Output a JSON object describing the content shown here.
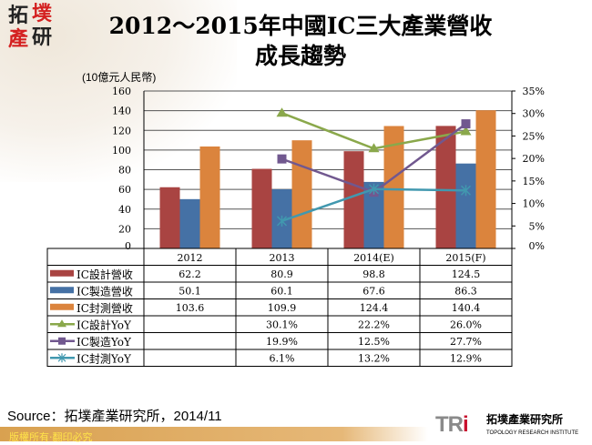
{
  "logo": {
    "chars": [
      "拓",
      "墣",
      "產",
      "研"
    ]
  },
  "title": {
    "line1": "2012～2015年中國IC三大產業營收",
    "line2": "成長趨勢"
  },
  "unit_label": "(10億元人民幣)",
  "chart_data": {
    "type": "bar",
    "categories": [
      "2012",
      "2013",
      "2014(E)",
      "2015(F)"
    ],
    "y_left": {
      "min": 0,
      "max": 160,
      "step": 20,
      "ticks": [
        "0",
        "20",
        "40",
        "60",
        "80",
        "100",
        "120",
        "140",
        "160"
      ]
    },
    "y_right": {
      "min": 0,
      "max": 35,
      "step": 5,
      "ticks": [
        "0%",
        "5%",
        "10%",
        "15%",
        "20%",
        "25%",
        "30%",
        "35%"
      ]
    },
    "grid": true,
    "legend": "table-below",
    "bar_series": [
      {
        "name": "IC設計營收",
        "color": "#a94442",
        "values": [
          62.2,
          80.9,
          98.8,
          124.5
        ],
        "labels": [
          "62.2",
          "80.9",
          "98.8",
          "124.5"
        ]
      },
      {
        "name": "IC製造營收",
        "color": "#4571a5",
        "values": [
          50.1,
          60.1,
          67.6,
          86.3
        ],
        "labels": [
          "50.1",
          "60.1",
          "67.6",
          "86.3"
        ]
      },
      {
        "name": "IC封測營收",
        "color": "#db843d",
        "values": [
          103.6,
          109.9,
          124.4,
          140.4
        ],
        "labels": [
          "103.6",
          "109.9",
          "124.4",
          "140.4"
        ]
      }
    ],
    "line_series": [
      {
        "name": "IC設計YoY",
        "color": "#8aa84b",
        "marker": "triangle",
        "values": [
          null,
          30.1,
          22.2,
          26.0
        ],
        "labels": [
          "",
          "30.1%",
          "22.2%",
          "26.0%"
        ]
      },
      {
        "name": "IC製造YoY",
        "color": "#71588f",
        "marker": "square",
        "values": [
          null,
          19.9,
          12.5,
          27.7
        ],
        "labels": [
          "",
          "19.9%",
          "12.5%",
          "27.7%"
        ]
      },
      {
        "name": "IC封測YoY",
        "color": "#4198af",
        "marker": "star",
        "values": [
          null,
          6.1,
          13.2,
          12.9
        ],
        "labels": [
          "",
          "6.1%",
          "13.2%",
          "12.9%"
        ]
      }
    ]
  },
  "source": "Source：拓墣產業研究所，2014/11",
  "footer": "版權所有‧翻印必究",
  "brand": {
    "mark": "TR",
    "mark_i": "i",
    "cn": "拓墣產業研究所",
    "en": "TOPOLOGY RESEARCH INSTITUTE"
  }
}
